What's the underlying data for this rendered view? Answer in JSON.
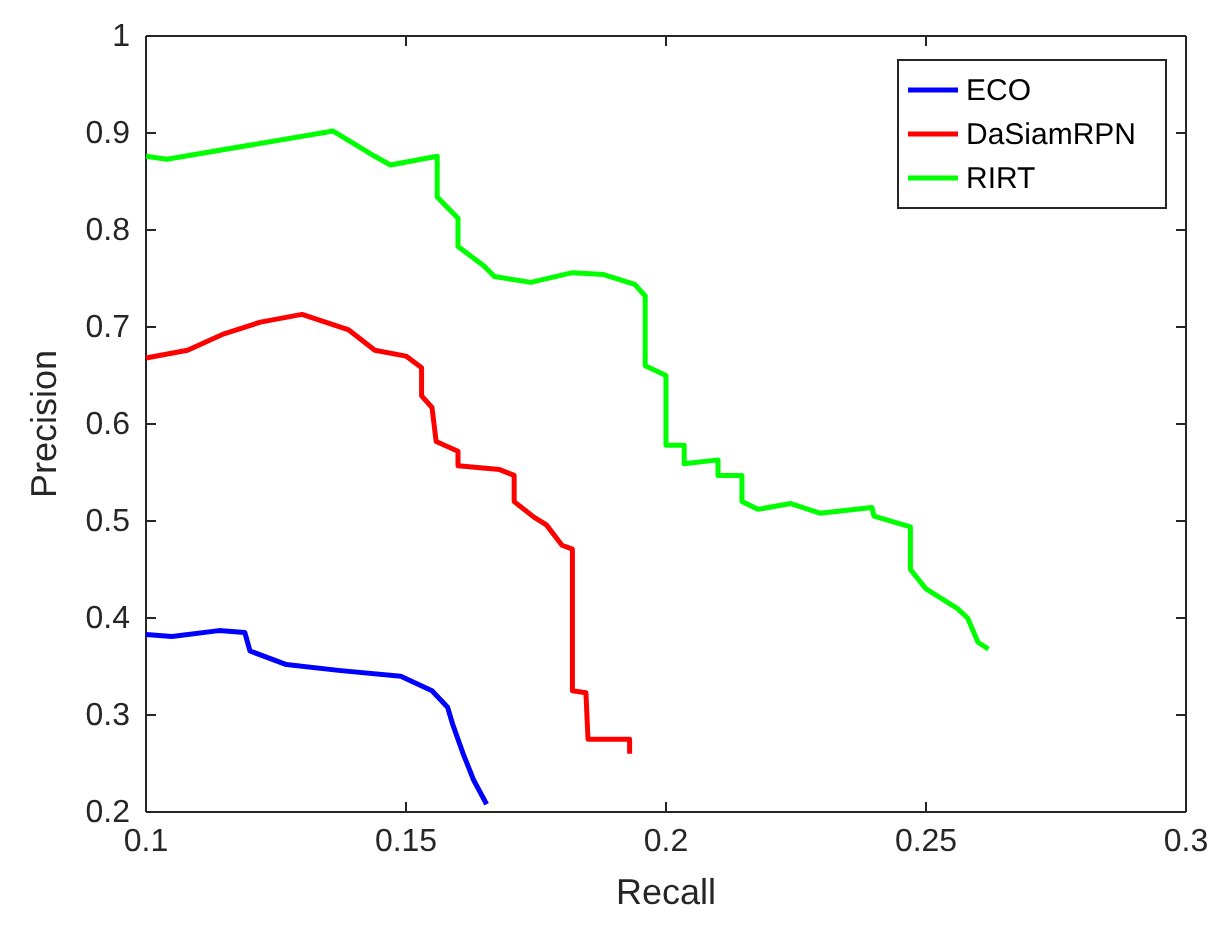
{
  "chart_data": {
    "type": "line",
    "xlabel": "Recall",
    "ylabel": "Precision",
    "xlim": [
      0.1,
      0.3
    ],
    "ylim": [
      0.2,
      1
    ],
    "xticks": [
      0.1,
      0.15,
      0.2,
      0.25,
      0.3
    ],
    "yticks": [
      0.2,
      0.3,
      0.4,
      0.5,
      0.6,
      0.7,
      0.8,
      0.9,
      1
    ],
    "grid": false,
    "legend": "top right",
    "marker": "none",
    "line_style": "solid",
    "series": [
      {
        "name": "ECO",
        "color": "#0000ff",
        "x": [
          0.1,
          0.105,
          0.114,
          0.119,
          0.12,
          0.127,
          0.137,
          0.149,
          0.155,
          0.158,
          0.159,
          0.161,
          0.163,
          0.1655
        ],
        "values": [
          0.383,
          0.381,
          0.387,
          0.385,
          0.366,
          0.352,
          0.346,
          0.34,
          0.325,
          0.308,
          0.29,
          0.26,
          0.233,
          0.208
        ]
      },
      {
        "name": "DaSiamRPN",
        "color": "#ff0000",
        "x": [
          0.1,
          0.108,
          0.115,
          0.122,
          0.13,
          0.139,
          0.144,
          0.15,
          0.153,
          0.153,
          0.155,
          0.1558,
          0.16,
          0.16,
          0.168,
          0.1708,
          0.1708,
          0.1746,
          0.177,
          0.18,
          0.182,
          0.182,
          0.1846,
          0.185,
          0.193,
          0.193
        ],
        "values": [
          0.668,
          0.676,
          0.693,
          0.705,
          0.713,
          0.697,
          0.676,
          0.67,
          0.658,
          0.629,
          0.617,
          0.582,
          0.572,
          0.557,
          0.553,
          0.547,
          0.52,
          0.504,
          0.496,
          0.475,
          0.471,
          0.325,
          0.323,
          0.275,
          0.275,
          0.26
        ]
      },
      {
        "name": "RIRT",
        "color": "#00ff00",
        "x": [
          0.1,
          0.104,
          0.136,
          0.144,
          0.147,
          0.156,
          0.156,
          0.16,
          0.16,
          0.165,
          0.167,
          0.174,
          0.182,
          0.188,
          0.194,
          0.196,
          0.196,
          0.2,
          0.2,
          0.2035,
          0.2035,
          0.21,
          0.21,
          0.2146,
          0.2146,
          0.2177,
          0.224,
          0.2296,
          0.2396,
          0.24,
          0.247,
          0.247,
          0.25,
          0.253,
          0.256,
          0.258,
          0.26,
          0.262
        ],
        "values": [
          0.876,
          0.873,
          0.902,
          0.876,
          0.867,
          0.876,
          0.834,
          0.812,
          0.783,
          0.763,
          0.752,
          0.746,
          0.756,
          0.754,
          0.744,
          0.732,
          0.66,
          0.65,
          0.578,
          0.578,
          0.559,
          0.563,
          0.547,
          0.547,
          0.52,
          0.512,
          0.518,
          0.508,
          0.514,
          0.505,
          0.494,
          0.45,
          0.43,
          0.42,
          0.41,
          0.4,
          0.375,
          0.368
        ]
      }
    ]
  }
}
